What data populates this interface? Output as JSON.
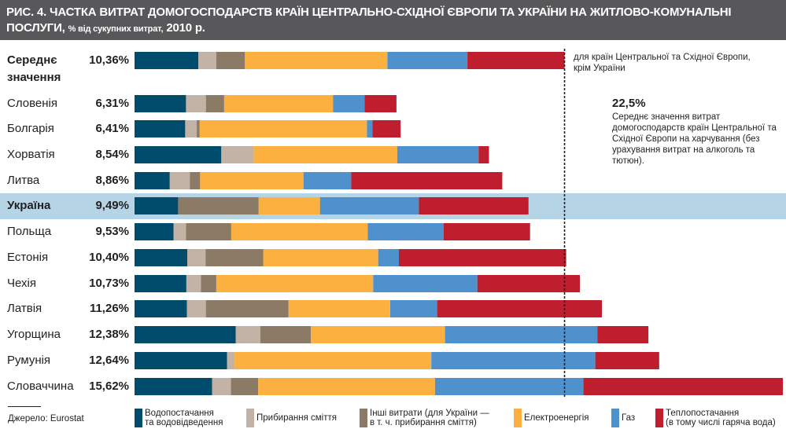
{
  "header": {
    "title": "РИС. 4. ЧАСТКА ВИТРАТ ДОМОГОСПОДАРСТВ КРАЇН ЦЕНТРАЛЬНО-СХІДНОЇ ЄВРОПИ ТА УКРАЇНИ НА ЖИТЛОВО-КОМУНАЛЬНІ",
    "title_line2": "ПОСЛУГИ,",
    "subtitle": "% від сукупних витрат,",
    "year": "2010 р."
  },
  "annotations": {
    "avg_line_note": "для країн Центральної та Східної Європи,\nкрім України",
    "food_value": "22,5%",
    "food_note": "Середнє значення витрат домогосподарств країн Центральної та Східної Європи на харчування (без урахування витрат на алкоголь та тютюн)."
  },
  "source": "Джерело: Eurostat",
  "colors": {
    "water": "#004c6c",
    "garbage": "#c3b2a6",
    "other": "#8b7a66",
    "electricity": "#fbb040",
    "gas": "#4f91cd",
    "heating": "#be1e2d",
    "highlight": "#b5d4e6",
    "header_bg": "#58585a"
  },
  "chart_data": {
    "type": "bar",
    "orientation": "horizontal",
    "stacked": true,
    "title": "Частка витрат домогосподарств країн Центрально-Східної Європи та України на житлово-комунальні послуги, % від сукупних витрат, 2010 р.",
    "xlabel": "",
    "ylabel": "",
    "xlim": [
      0,
      15.62
    ],
    "grid": false,
    "legend_position": "bottom",
    "reference_line": {
      "value": 10.36,
      "style": "dashed",
      "label": "для країн Центральної та Східної Європи, крім України"
    },
    "categories": [
      "Середнє значення",
      "Словенія",
      "Болгарія",
      "Хорватія",
      "Литва",
      "Україна",
      "Польща",
      "Естонія",
      "Чехія",
      "Латвія",
      "Угорщина",
      "Румунія",
      "Словаччина"
    ],
    "category_display": [
      {
        "name": "Середнє",
        "name2": "значення",
        "bold": true
      },
      {
        "name": "Словенія"
      },
      {
        "name": "Болгарія"
      },
      {
        "name": "Хорватія"
      },
      {
        "name": "Литва"
      },
      {
        "name": "Україна",
        "bold": true,
        "highlight": true
      },
      {
        "name": "Польща"
      },
      {
        "name": "Естонія"
      },
      {
        "name": "Чехія"
      },
      {
        "name": "Латвія"
      },
      {
        "name": "Угорщина"
      },
      {
        "name": "Румунія"
      },
      {
        "name": "Словаччина"
      }
    ],
    "totals": [
      10.36,
      6.31,
      6.41,
      8.54,
      8.86,
      9.49,
      9.53,
      10.4,
      10.73,
      11.26,
      12.38,
      12.64,
      15.62
    ],
    "total_labels": [
      "10,36%",
      "6,31%",
      "6,41%",
      "8,54%",
      "8,86%",
      "9,49%",
      "9,53%",
      "10,40%",
      "10,73%",
      "11,26%",
      "12,38%",
      "12,64%",
      "15,62%"
    ],
    "series": [
      {
        "key": "water",
        "name": "Водопостачання\nта водовідведення",
        "values": [
          1.54,
          1.24,
          1.22,
          2.09,
          0.85,
          1.05,
          0.94,
          1.27,
          1.25,
          1.26,
          2.44,
          2.23,
          1.87
        ]
      },
      {
        "key": "garbage",
        "name": "Прибирання сміття",
        "values": [
          0.43,
          0.48,
          0.28,
          0.78,
          0.48,
          0.0,
          0.3,
          0.44,
          0.35,
          0.46,
          0.59,
          0.18,
          0.45
        ]
      },
      {
        "key": "other",
        "name": "Інші витрати (для України —\nв т. ч. прибирання сміття)",
        "values": [
          0.69,
          0.44,
          0.07,
          0.0,
          0.25,
          1.94,
          1.09,
          1.39,
          0.37,
          1.99,
          1.22,
          0.0,
          0.66
        ]
      },
      {
        "key": "electricity",
        "name": "Електроенергія",
        "values": [
          3.43,
          2.62,
          4.03,
          3.46,
          2.49,
          1.48,
          3.29,
          2.77,
          3.78,
          2.45,
          3.23,
          4.74,
          4.26
        ]
      },
      {
        "key": "gas",
        "name": "Газ",
        "values": [
          1.93,
          0.76,
          0.13,
          1.96,
          1.15,
          2.38,
          1.83,
          0.5,
          2.51,
          1.13,
          3.67,
          3.95,
          3.57
        ]
      },
      {
        "key": "heating",
        "name": "Теплопостачання\n(в тому числі гаряча вода)",
        "values": [
          2.34,
          0.77,
          0.68,
          0.25,
          3.64,
          2.64,
          2.08,
          4.03,
          2.47,
          3.97,
          1.23,
          1.54,
          4.81
        ]
      }
    ]
  }
}
